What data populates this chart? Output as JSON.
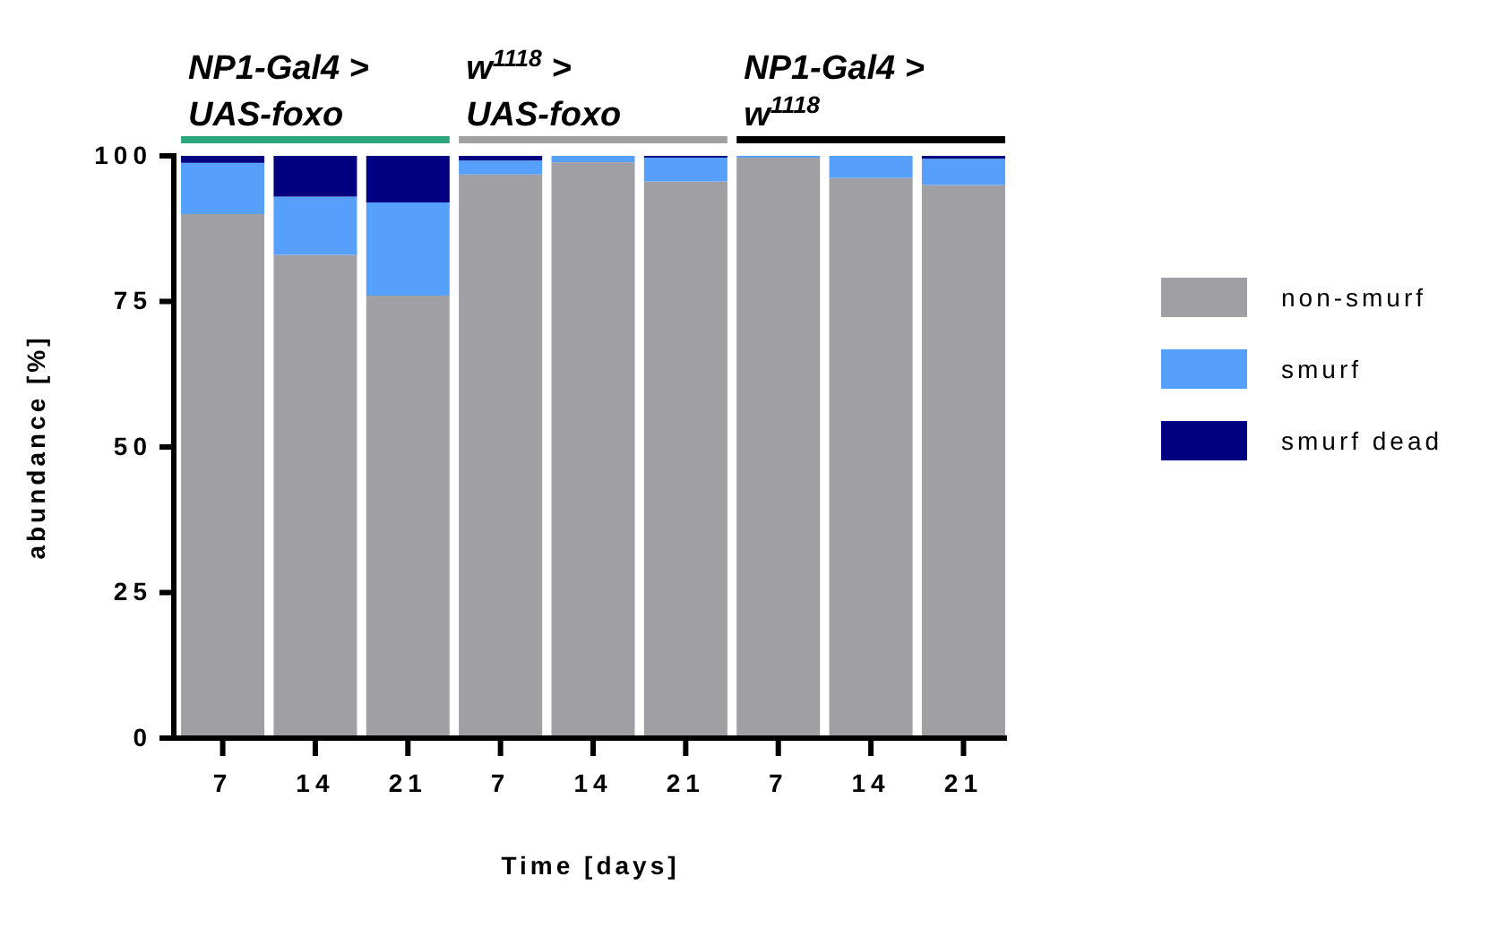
{
  "chart_data": {
    "type": "bar",
    "stacked": true,
    "xlabel": "Time [days]",
    "ylabel": "abundance [%]",
    "categories": [
      "7",
      "14",
      "21",
      "7",
      "14",
      "21",
      "7",
      "14",
      "21"
    ],
    "series": [
      {
        "name": "non-smurf",
        "color": "#a09fa4",
        "values": [
          90,
          83,
          76,
          96.8,
          98.9,
          95.6,
          99.7,
          96.2,
          95
        ]
      },
      {
        "name": "smurf",
        "color": "#56a0fb",
        "values": [
          8.8,
          10,
          16,
          2.4,
          1.1,
          4.1,
          0.3,
          3.8,
          4.5
        ]
      },
      {
        "name": "smurf dead",
        "color": "#000080",
        "values": [
          1.2,
          7,
          8,
          0.8,
          0,
          0.3,
          0,
          0,
          0.5
        ]
      }
    ],
    "annotations": [
      "NP1-Gal4 > UAS-foxo",
      "w$^{1118}$ > UAS-foxo",
      "NP1-Gal4 > w$^{1118}$"
    ],
    "ylim": [
      0,
      100
    ],
    "yticks": [
      0,
      25,
      50,
      75,
      100
    ],
    "grid": false,
    "legend": "right"
  }
}
